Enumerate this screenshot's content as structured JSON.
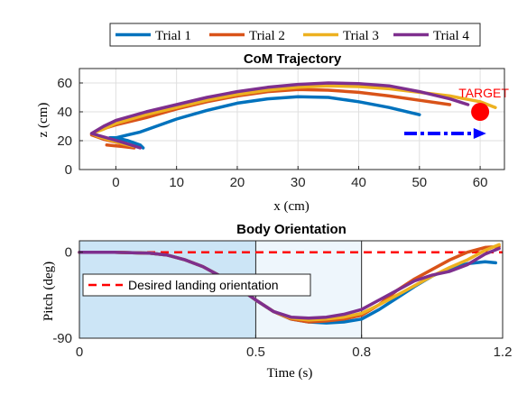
{
  "legend": {
    "entries": [
      {
        "label": "Trial 1",
        "color": "#0072BD"
      },
      {
        "label": "Trial 2",
        "color": "#D95319"
      },
      {
        "label": "Trial 3",
        "color": "#EDB120"
      },
      {
        "label": "Trial 4",
        "color": "#7E2F8E"
      }
    ],
    "placement": "top"
  },
  "chart_data": [
    {
      "type": "line",
      "title": "CoM Trajectory",
      "xlabel": "x (cm)",
      "ylabel": "z (cm)",
      "xlim": [
        -6,
        64
      ],
      "ylim": [
        0,
        70
      ],
      "xticks": [
        0,
        10,
        20,
        30,
        40,
        50,
        60
      ],
      "yticks": [
        0,
        20,
        40,
        60
      ],
      "grid": true,
      "series": [
        {
          "name": "Trial 1",
          "color": "#0072BD",
          "x": [
            4.5,
            4,
            2,
            0,
            -1,
            0,
            2,
            4,
            6,
            10,
            15,
            20,
            25,
            30,
            35,
            40,
            45,
            50
          ],
          "y": [
            15,
            17,
            20,
            22,
            22,
            22,
            24,
            26,
            29,
            35,
            41,
            46,
            49,
            50.5,
            50,
            47,
            43,
            38
          ]
        },
        {
          "name": "Trial 2",
          "color": "#D95319",
          "x": [
            -1.5,
            1,
            3,
            1,
            -2,
            -4,
            -3,
            0,
            5,
            10,
            15,
            20,
            25,
            30,
            35,
            40,
            45,
            50,
            55
          ],
          "y": [
            17,
            16,
            15,
            18,
            21,
            24,
            27,
            31,
            36,
            42,
            47,
            51,
            54,
            55.5,
            55,
            53.5,
            51,
            48,
            45
          ]
        },
        {
          "name": "Trial 3",
          "color": "#EDB120",
          "x": [
            2,
            3,
            1,
            -3,
            -4,
            -2,
            0,
            5,
            10,
            15,
            20,
            25,
            30,
            35,
            40,
            45,
            50,
            55,
            60,
            62.5
          ],
          "y": [
            17,
            16,
            18,
            23,
            25,
            28,
            32,
            38,
            43,
            48,
            52,
            55,
            57,
            58,
            57.5,
            56,
            53.5,
            51,
            47,
            43
          ]
        },
        {
          "name": "Trial 4",
          "color": "#7E2F8E",
          "x": [
            4,
            1,
            -4,
            -2,
            0,
            5,
            10,
            15,
            20,
            25,
            30,
            35,
            40,
            45,
            50,
            55,
            58
          ],
          "y": [
            15,
            19,
            25,
            30,
            34,
            40,
            45,
            50,
            54,
            57,
            59,
            60,
            59.5,
            58,
            54,
            49,
            45
          ]
        }
      ],
      "target": {
        "label": "TARGET",
        "x": 60,
        "y": 40,
        "color": "#ff0000"
      },
      "arrow": {
        "x": [
          47.5,
          61
        ],
        "y": [
          25,
          25
        ],
        "color": "#0000ff"
      }
    },
    {
      "type": "line",
      "title": "Body Orientation",
      "xlabel": "Time (s)",
      "ylabel": "Pitch (deg)",
      "xlim": [
        0,
        1.2
      ],
      "ylim": [
        -90,
        12
      ],
      "xticks": [
        0,
        0.5,
        0.8,
        1.2
      ],
      "xtick_labels": [
        "0",
        "0.5",
        "0.8",
        "1.2"
      ],
      "yticks": [
        -90,
        0
      ],
      "ytick_labels": [
        "-90",
        "0"
      ],
      "shaded_regions": [
        {
          "x": [
            0,
            0.5
          ],
          "color": "#cce5f6"
        },
        {
          "x": [
            0.5,
            0.8
          ],
          "color": "#eef6fc"
        }
      ],
      "vlines": [
        0.5,
        0.8
      ],
      "reference_line": {
        "label": "Desired landing orientation",
        "y": 0,
        "color": "#ff0000"
      },
      "legend_placement": "upper-left",
      "series": [
        {
          "name": "Trial 1",
          "color": "#0072BD",
          "x": [
            0,
            0.1,
            0.2,
            0.25,
            0.3,
            0.35,
            0.4,
            0.45,
            0.5,
            0.55,
            0.6,
            0.65,
            0.7,
            0.75,
            0.8,
            0.85,
            0.9,
            0.95,
            1.0,
            1.05,
            1.1,
            1.15,
            1.18
          ],
          "y": [
            0,
            0,
            -1,
            -3,
            -8,
            -15,
            -25,
            -37,
            -50,
            -62,
            -70,
            -73,
            -74,
            -73,
            -70,
            -60,
            -48,
            -36,
            -25,
            -17,
            -12,
            -10,
            -11
          ]
        },
        {
          "name": "Trial 2",
          "color": "#D95319",
          "x": [
            0,
            0.1,
            0.2,
            0.25,
            0.3,
            0.35,
            0.4,
            0.45,
            0.5,
            0.55,
            0.6,
            0.65,
            0.7,
            0.75,
            0.8,
            0.85,
            0.9,
            0.95,
            1.0,
            1.05,
            1.1,
            1.15,
            1.19
          ],
          "y": [
            0,
            0,
            -1,
            -3,
            -8,
            -15,
            -25,
            -37,
            -50,
            -62,
            -70,
            -73,
            -72,
            -70,
            -66,
            -55,
            -40,
            -28,
            -18,
            -8,
            0,
            5,
            6
          ]
        },
        {
          "name": "Trial 3",
          "color": "#EDB120",
          "x": [
            0,
            0.1,
            0.2,
            0.25,
            0.3,
            0.35,
            0.4,
            0.45,
            0.5,
            0.55,
            0.6,
            0.65,
            0.7,
            0.75,
            0.8,
            0.85,
            0.9,
            0.95,
            1.0,
            1.05,
            1.1,
            1.15,
            1.19
          ],
          "y": [
            0,
            0,
            -1,
            -3,
            -8,
            -15,
            -25,
            -37,
            -50,
            -62,
            -69,
            -71,
            -70,
            -68,
            -64,
            -55,
            -45,
            -35,
            -25,
            -16,
            -8,
            2,
            8
          ]
        },
        {
          "name": "Trial 4",
          "color": "#7E2F8E",
          "x": [
            0,
            0.1,
            0.2,
            0.25,
            0.3,
            0.35,
            0.4,
            0.45,
            0.5,
            0.55,
            0.6,
            0.65,
            0.7,
            0.75,
            0.8,
            0.85,
            0.9,
            0.95,
            1.0,
            1.05,
            1.1,
            1.15,
            1.19
          ],
          "y": [
            0,
            0,
            -1,
            -3,
            -8,
            -15,
            -25,
            -37,
            -50,
            -62,
            -68,
            -69,
            -68,
            -65,
            -60,
            -50,
            -40,
            -30,
            -24,
            -20,
            -13,
            -2,
            4
          ]
        }
      ]
    }
  ]
}
